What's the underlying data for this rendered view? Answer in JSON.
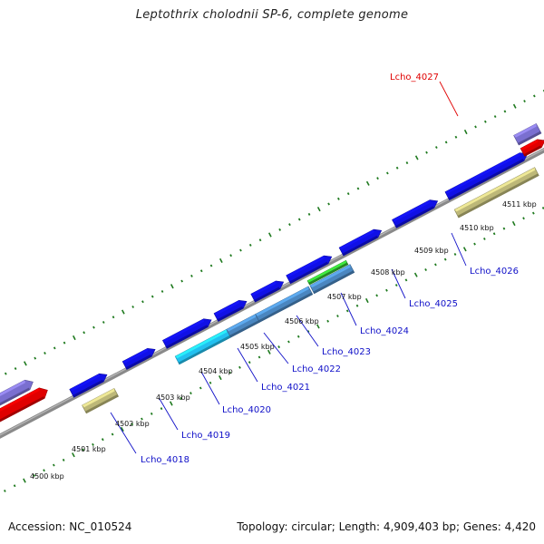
{
  "title": "Leptothrix cholodnii SP-6, complete genome",
  "footer": {
    "accession": "Accession: NC_010524",
    "stats": "Topology: circular; Length: 4,909,403 bp; Genes: 4,420"
  },
  "colors": {
    "backbone": "#8a8a8a",
    "tick": "#1f7a1f",
    "label_link": "#1010c8",
    "label_highlight": "#e00000",
    "forward_cds": "#1010e6",
    "rna_red": "#e00000",
    "purple": "#7a6fd0",
    "khaki": "#bdb878",
    "cyan": "#22c0f0",
    "steelblue": "#4a86c0",
    "green": "#33bb33"
  },
  "kbp_labels": [
    "4500 kbp",
    "4501 kbp",
    "4502 kbp",
    "4503 kbp",
    "4504 kbp",
    "4505 kbp",
    "4506 kbp",
    "4507 kbp",
    "4508 kbp",
    "4509 kbp",
    "4510 kbp",
    "4511 kbp"
  ],
  "genes": [
    {
      "label": "Lcho_4018",
      "color": "link"
    },
    {
      "label": "Lcho_4019",
      "color": "link"
    },
    {
      "label": "Lcho_4020",
      "color": "link"
    },
    {
      "label": "Lcho_4021",
      "color": "link"
    },
    {
      "label": "Lcho_4022",
      "color": "link"
    },
    {
      "label": "Lcho_4023",
      "color": "link"
    },
    {
      "label": "Lcho_4024",
      "color": "link"
    },
    {
      "label": "Lcho_4025",
      "color": "link"
    },
    {
      "label": "Lcho_4026",
      "color": "link"
    },
    {
      "label": "Lcho_4027",
      "color": "highlight"
    }
  ]
}
